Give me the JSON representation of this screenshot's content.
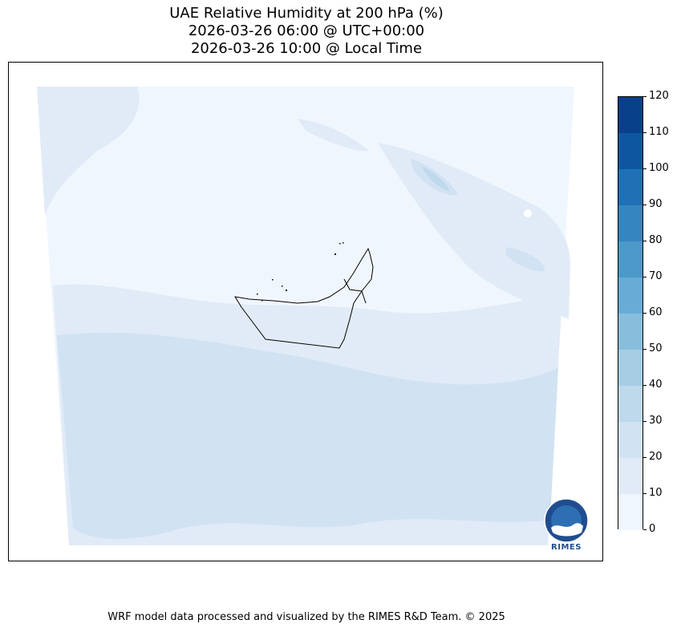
{
  "title": {
    "line1": "UAE Relative Humidity at 200 hPa (%)",
    "line2": "2026-03-26 06:00 @ UTC+00:00",
    "line3": "2026-03-26 10:00 @ Local Time"
  },
  "colorbar": {
    "levels": [
      {
        "label": "0",
        "value": 0
      },
      {
        "label": "10",
        "value": 10
      },
      {
        "label": "20",
        "value": 20
      },
      {
        "label": "30",
        "value": 30
      },
      {
        "label": "40",
        "value": 40
      },
      {
        "label": "50",
        "value": 50
      },
      {
        "label": "60",
        "value": 60
      },
      {
        "label": "70",
        "value": 70
      },
      {
        "label": "80",
        "value": 80
      },
      {
        "label": "90",
        "value": 90
      },
      {
        "label": "100",
        "value": 100
      },
      {
        "label": "110",
        "value": 110
      },
      {
        "label": "120",
        "value": 120
      }
    ],
    "colors": [
      "#f0f6fd",
      "#e1ebf7",
      "#d1e2f3",
      "#bed8ec",
      "#a6cde4",
      "#88bedc",
      "#68acd5",
      "#4c99c9",
      "#3585bf",
      "#1f70b4",
      "#0d57a1",
      "#08408a"
    ]
  },
  "logo": {
    "text": "RIMES"
  },
  "footer": {
    "text": "WRF model data processed and visualized by the RIMES R&D Team. © 2025"
  }
}
